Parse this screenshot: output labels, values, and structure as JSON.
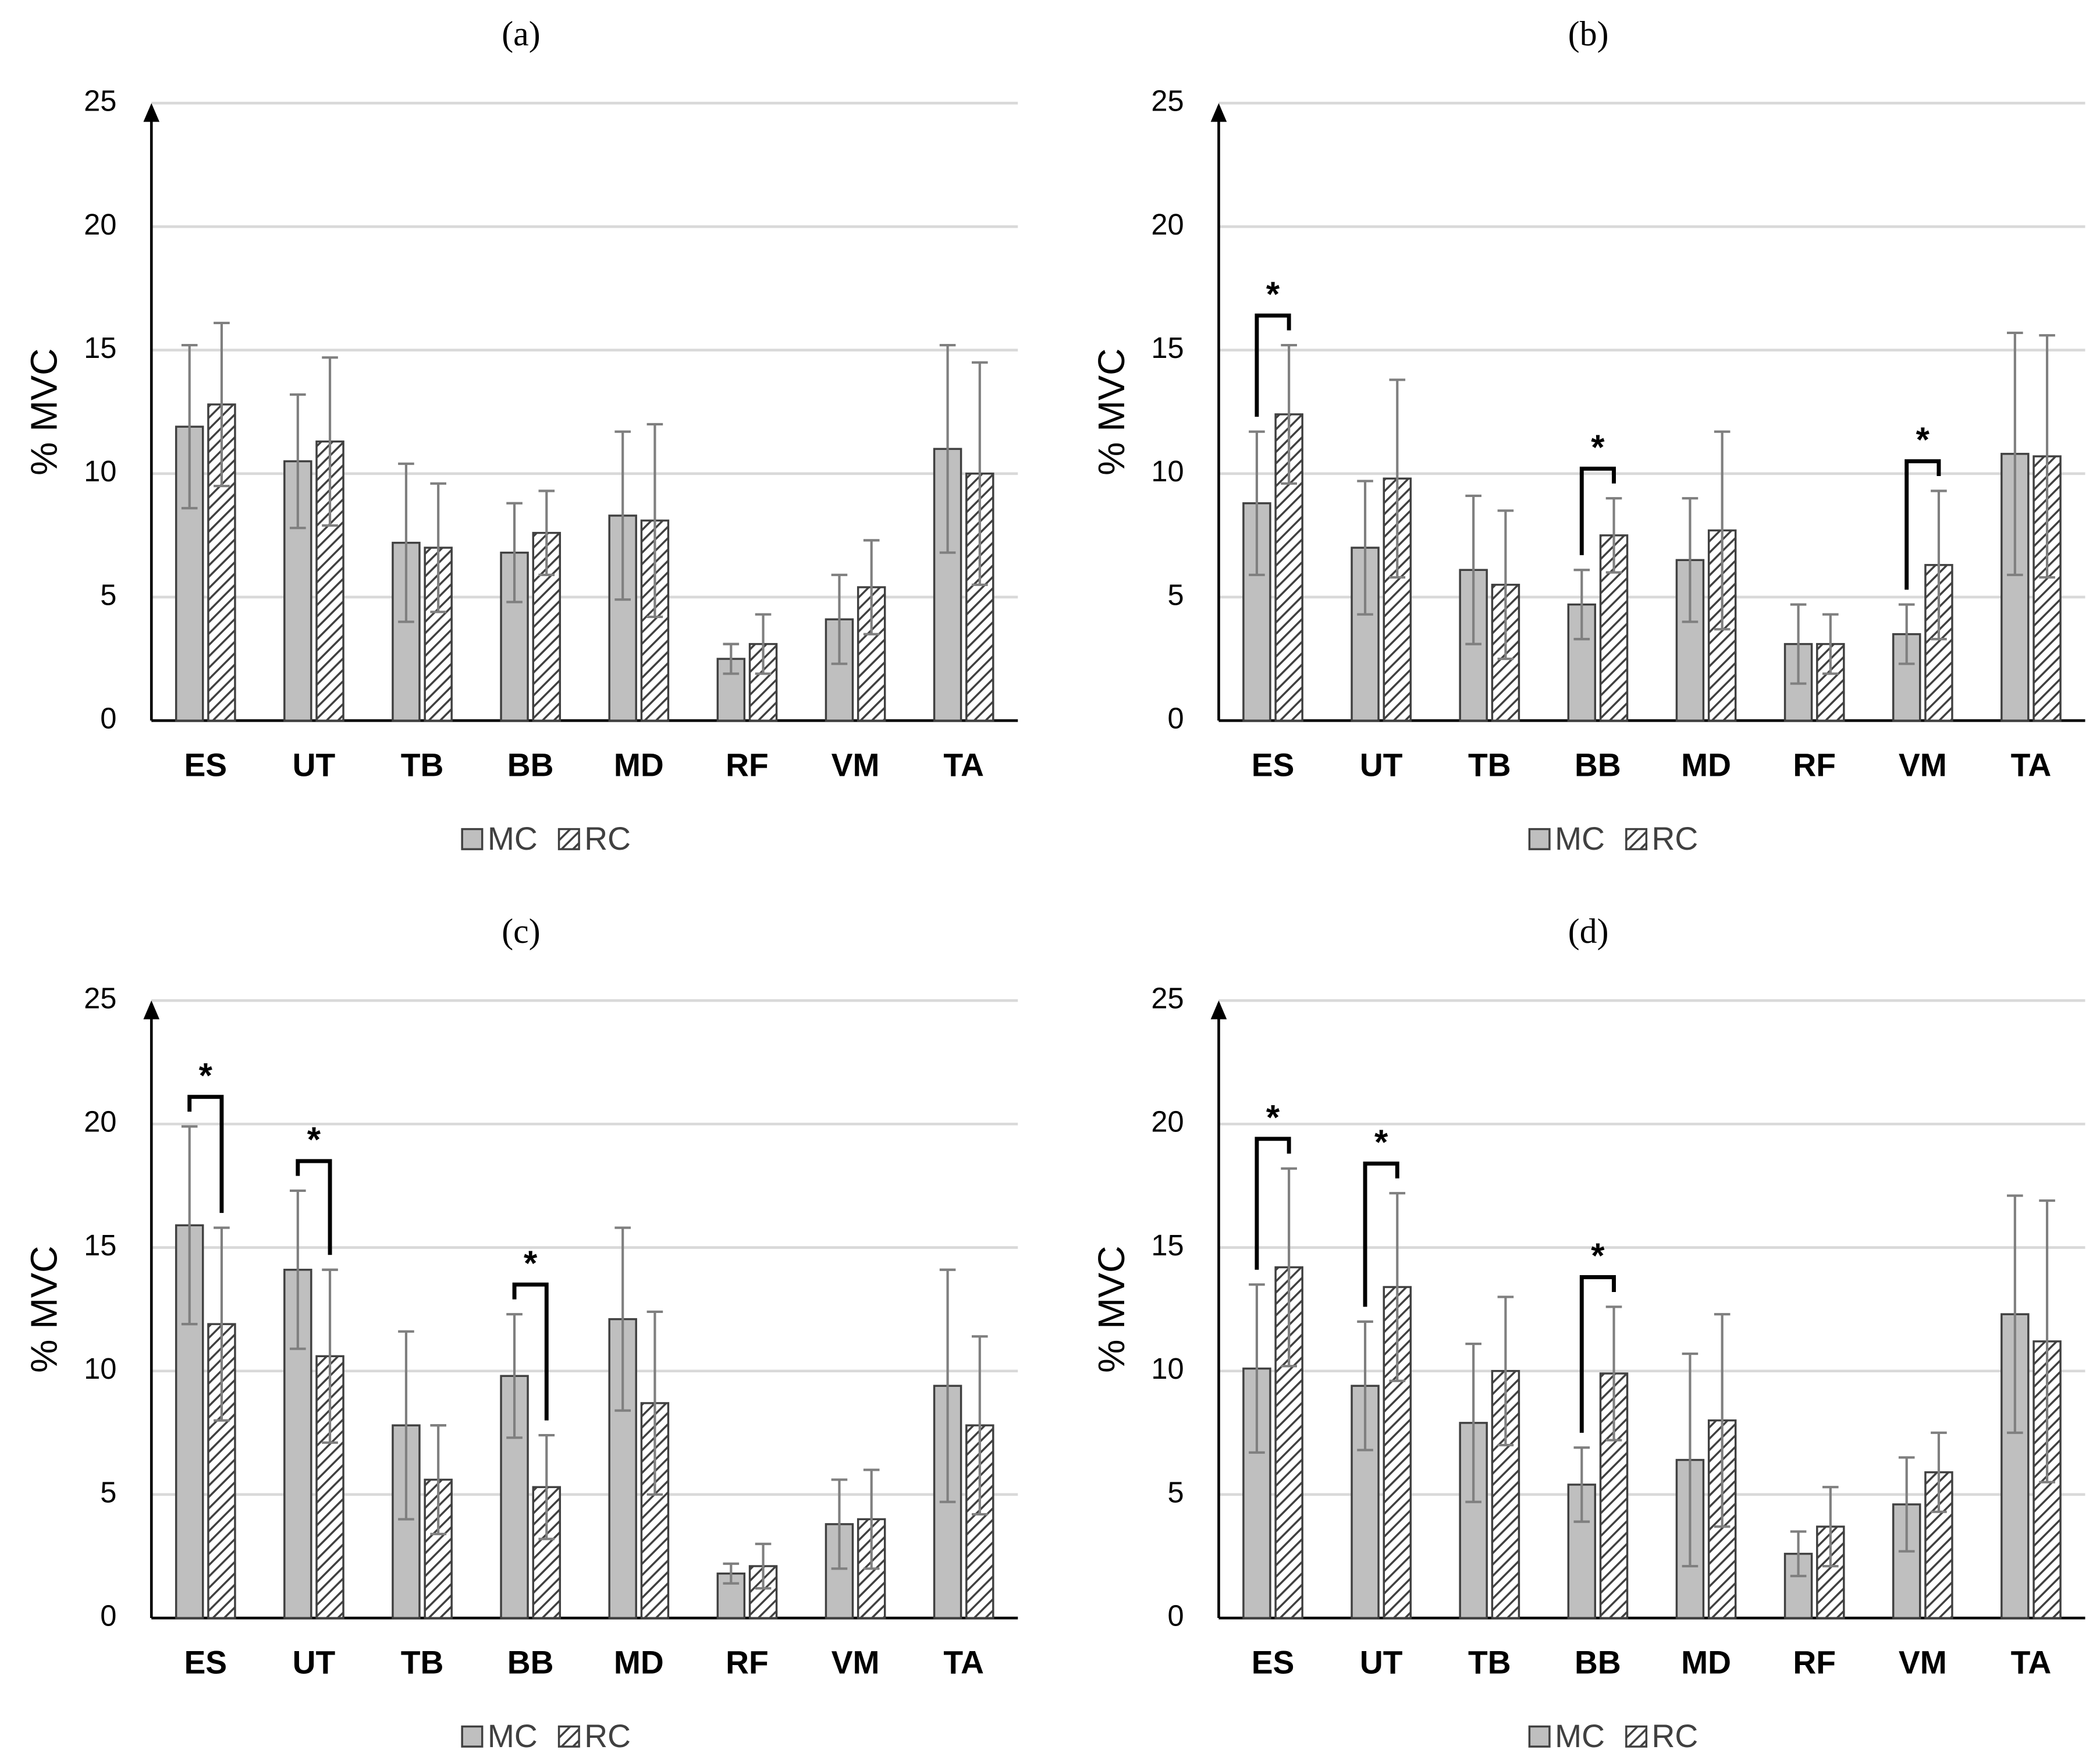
{
  "chart_data": [
    {
      "type": "bar",
      "title": "(a)",
      "ylabel": "% MVC",
      "categories": [
        "ES",
        "UT",
        "TB",
        "BB",
        "MD",
        "RF",
        "VM",
        "TA"
      ],
      "series": [
        {
          "name": "MC",
          "color": "#bfbfbf",
          "values": [
            11.9,
            10.5,
            7.2,
            6.8,
            8.3,
            2.5,
            4.1,
            11.0
          ],
          "errors": [
            3.3,
            2.7,
            3.2,
            2.0,
            3.4,
            0.6,
            1.8,
            4.2
          ]
        },
        {
          "name": "RC",
          "color": "#404040",
          "pattern": "hatch",
          "values": [
            12.8,
            11.3,
            7.0,
            7.6,
            8.1,
            3.1,
            5.4,
            10.0
          ],
          "errors": [
            3.3,
            3.4,
            2.6,
            1.7,
            3.9,
            1.2,
            1.9,
            4.5
          ]
        }
      ],
      "ylim": [
        0,
        25
      ],
      "yticks": [
        0,
        5,
        10,
        15,
        20,
        25
      ],
      "grid": true,
      "legend": "bottom",
      "annotations": []
    },
    {
      "type": "bar",
      "title": "(b)",
      "ylabel": "% MVC",
      "categories": [
        "ES",
        "UT",
        "TB",
        "BB",
        "MD",
        "RF",
        "VM",
        "TA"
      ],
      "series": [
        {
          "name": "MC",
          "color": "#bfbfbf",
          "values": [
            8.8,
            7.0,
            6.1,
            4.7,
            6.5,
            3.1,
            3.5,
            10.8
          ],
          "errors": [
            2.9,
            2.7,
            3.0,
            1.4,
            2.5,
            1.6,
            1.2,
            4.9
          ]
        },
        {
          "name": "RC",
          "color": "#404040",
          "pattern": "hatch",
          "values": [
            12.4,
            9.8,
            5.5,
            7.5,
            7.7,
            3.1,
            6.3,
            10.7
          ],
          "errors": [
            2.8,
            4.0,
            3.0,
            1.5,
            4.0,
            1.2,
            3.0,
            4.9
          ]
        }
      ],
      "ylim": [
        0,
        25
      ],
      "yticks": [
        0,
        5,
        10,
        15,
        20,
        25
      ],
      "grid": true,
      "legend": "bottom",
      "annotations": [
        {
          "text": "*",
          "category": "ES"
        },
        {
          "text": "*",
          "category": "BB"
        },
        {
          "text": "*",
          "category": "VM"
        }
      ]
    },
    {
      "type": "bar",
      "title": "(c)",
      "ylabel": "% MVC",
      "categories": [
        "ES",
        "UT",
        "TB",
        "BB",
        "MD",
        "RF",
        "VM",
        "TA"
      ],
      "series": [
        {
          "name": "MC",
          "color": "#bfbfbf",
          "values": [
            15.9,
            14.1,
            7.8,
            9.8,
            12.1,
            1.8,
            3.8,
            9.4
          ],
          "errors": [
            4.0,
            3.2,
            3.8,
            2.5,
            3.7,
            0.4,
            1.8,
            4.7
          ]
        },
        {
          "name": "RC",
          "color": "#404040",
          "pattern": "hatch",
          "values": [
            11.9,
            10.6,
            5.6,
            5.3,
            8.7,
            2.1,
            4.0,
            7.8
          ],
          "errors": [
            3.9,
            3.5,
            2.2,
            2.1,
            3.7,
            0.9,
            2.0,
            3.6
          ]
        }
      ],
      "ylim": [
        0,
        25
      ],
      "yticks": [
        0,
        5,
        10,
        15,
        20,
        25
      ],
      "grid": true,
      "legend": "bottom",
      "annotations": [
        {
          "text": "*",
          "category": "ES"
        },
        {
          "text": "*",
          "category": "UT"
        },
        {
          "text": "*",
          "category": "BB"
        }
      ]
    },
    {
      "type": "bar",
      "title": "(d)",
      "ylabel": "% MVC",
      "categories": [
        "ES",
        "UT",
        "TB",
        "BB",
        "MD",
        "RF",
        "VM",
        "TA"
      ],
      "series": [
        {
          "name": "MC",
          "color": "#bfbfbf",
          "values": [
            10.1,
            9.4,
            7.9,
            5.4,
            6.4,
            2.6,
            4.6,
            12.3
          ],
          "errors": [
            3.4,
            2.6,
            3.2,
            1.5,
            4.3,
            0.9,
            1.9,
            4.8
          ]
        },
        {
          "name": "RC",
          "color": "#404040",
          "pattern": "hatch",
          "values": [
            14.2,
            13.4,
            10.0,
            9.9,
            8.0,
            3.7,
            5.9,
            11.2
          ],
          "errors": [
            4.0,
            3.8,
            3.0,
            2.7,
            4.3,
            1.6,
            1.6,
            5.7
          ]
        }
      ],
      "ylim": [
        0,
        25
      ],
      "yticks": [
        0,
        5,
        10,
        15,
        20,
        25
      ],
      "grid": true,
      "legend": "bottom",
      "annotations": [
        {
          "text": "*",
          "category": "ES"
        },
        {
          "text": "*",
          "category": "UT"
        },
        {
          "text": "*",
          "category": "BB"
        }
      ]
    }
  ]
}
